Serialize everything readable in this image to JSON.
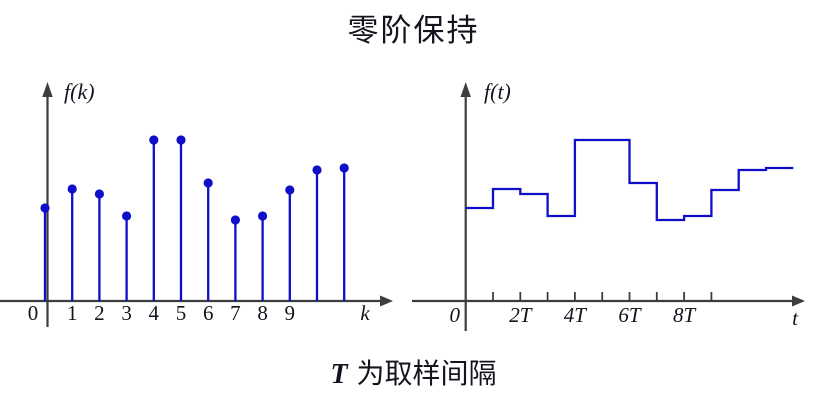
{
  "title": "零阶保持",
  "caption": {
    "t_symbol": "T",
    "text": "为取样间隔"
  },
  "colors": {
    "signal": "#0f0fca",
    "axis": "#3d3d3d",
    "text": "#14141e"
  },
  "chart_data": [
    {
      "type": "stem",
      "id": "stem-plot",
      "title": "sampled sequence",
      "ylabel": "f(k)",
      "xlabel": "k",
      "x": [
        0,
        1,
        2,
        3,
        4,
        5,
        6,
        7,
        8,
        9,
        10,
        11
      ],
      "values": [
        93,
        112,
        107,
        85,
        161,
        161,
        118,
        81,
        85,
        111,
        131,
        133
      ],
      "x_tick_labels": [
        "0",
        "1",
        "2",
        "3",
        "4",
        "5",
        "6",
        "7",
        "8",
        "9"
      ],
      "ylim": [
        0,
        180
      ],
      "grid": false,
      "legend": "none"
    },
    {
      "type": "step",
      "id": "zoh-plot",
      "title": "zero-order hold output",
      "ylabel": "f(t)",
      "xlabel": "t",
      "x": [
        0,
        1,
        2,
        3,
        4,
        5,
        6,
        7,
        8,
        9,
        10,
        11
      ],
      "values": [
        93,
        112,
        107,
        85,
        161,
        161,
        118,
        81,
        85,
        111,
        131,
        133
      ],
      "num_ticks": 9,
      "x_tick_labels": [
        "0",
        "2T",
        "4T",
        "6T",
        "8T"
      ],
      "tick_label_positions": [
        0,
        2,
        4,
        6,
        8
      ],
      "ylim": [
        0,
        180
      ],
      "grid": false,
      "legend": "none"
    }
  ]
}
